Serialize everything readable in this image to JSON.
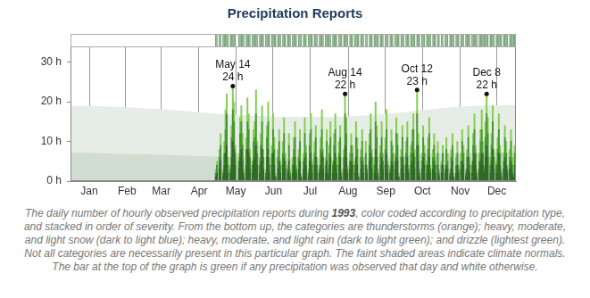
{
  "chart_data": {
    "type": "bar",
    "title": "Precipitation Reports",
    "stacked": true,
    "grid": true,
    "x": [
      119,
      120,
      121,
      122,
      123,
      124,
      125,
      126,
      127,
      128,
      129,
      130,
      131,
      132,
      133,
      134,
      135,
      136,
      137,
      138,
      139,
      140,
      141,
      142,
      143,
      144,
      145,
      146,
      147,
      148,
      149,
      150,
      151,
      152,
      153,
      154,
      155,
      156,
      157,
      158,
      159,
      160,
      161,
      162,
      163,
      164,
      165,
      166,
      167,
      168,
      169,
      170,
      171,
      172,
      173,
      174,
      175,
      176,
      177,
      178,
      179,
      180,
      181,
      182,
      183,
      184,
      185,
      186,
      187,
      188,
      189,
      190,
      191,
      192,
      193,
      194,
      195,
      196,
      197,
      198,
      199,
      200,
      201,
      202,
      203,
      204,
      205,
      206,
      207,
      208,
      209,
      210,
      211,
      212,
      213,
      214,
      215,
      216,
      217,
      218,
      219,
      220,
      221,
      222,
      223,
      224,
      225,
      226,
      227,
      228,
      229,
      230,
      231,
      232,
      233,
      234,
      235,
      236,
      237,
      238,
      239,
      240,
      241,
      242,
      243,
      244,
      245,
      246,
      247,
      248,
      249,
      250,
      251,
      252,
      253,
      254,
      255,
      256,
      257,
      258,
      259,
      260,
      261,
      262,
      263,
      264,
      265,
      266,
      267,
      268,
      269,
      270,
      271,
      272,
      273,
      274,
      275,
      276,
      277,
      278,
      279,
      280,
      281,
      282,
      283,
      284,
      285,
      286,
      287,
      288,
      289,
      290,
      291,
      292,
      293,
      294,
      295,
      296,
      297,
      298,
      299,
      300,
      301,
      302,
      303,
      304,
      305,
      306,
      307,
      308,
      309,
      310,
      311,
      312,
      313,
      314,
      315,
      316,
      317,
      318,
      319,
      320,
      321,
      322,
      323,
      324,
      325,
      326,
      327,
      328,
      329,
      330,
      331,
      332,
      333,
      334,
      335,
      336,
      337,
      338,
      339,
      340,
      341,
      342,
      343,
      344,
      345,
      346,
      347,
      348,
      349,
      350,
      351,
      352,
      353,
      354,
      355,
      356,
      357,
      358,
      359,
      360,
      361,
      362,
      363,
      364
    ],
    "xlim": [
      0,
      365
    ],
    "xticks": [
      {
        "value": 0,
        "label": "Jan"
      },
      {
        "value": 31,
        "label": "Feb"
      },
      {
        "value": 59,
        "label": "Mar"
      },
      {
        "value": 90,
        "label": "Apr"
      },
      {
        "value": 120,
        "label": "May"
      },
      {
        "value": 151,
        "label": "Jun"
      },
      {
        "value": 181,
        "label": "Jul"
      },
      {
        "value": 212,
        "label": "Aug"
      },
      {
        "value": 243,
        "label": "Sep"
      },
      {
        "value": 273,
        "label": "Oct"
      },
      {
        "value": 304,
        "label": "Nov"
      },
      {
        "value": 334,
        "label": "Dec"
      }
    ],
    "ylim": [
      0,
      34
    ],
    "yticks": [
      {
        "value": 0,
        "label": "0 h"
      },
      {
        "value": 10,
        "label": "10 h"
      },
      {
        "value": 20,
        "label": "20 h"
      },
      {
        "value": 30,
        "label": "30 h"
      }
    ],
    "series": [
      {
        "color": "#2f6a26",
        "values": [
          1,
          2,
          0,
          3,
          5,
          0,
          1,
          4,
          7,
          9,
          2,
          0,
          2,
          6,
          10,
          8,
          4,
          0,
          0,
          3,
          6,
          8,
          5,
          1,
          0,
          4,
          8,
          7,
          3,
          0,
          2,
          5,
          6,
          9,
          4,
          0,
          2,
          5,
          8,
          3,
          0,
          1,
          6,
          8,
          2,
          0,
          4,
          7,
          4,
          1,
          0,
          3,
          5,
          2,
          0,
          4,
          6,
          3,
          0,
          2,
          5,
          1,
          0,
          2,
          4,
          6,
          2,
          0,
          3,
          5,
          1,
          0,
          3,
          6,
          4,
          0,
          1,
          5,
          7,
          2,
          0,
          4,
          6,
          2,
          0,
          2,
          4,
          7,
          3,
          0,
          2,
          5,
          1,
          4,
          6,
          0,
          2,
          5,
          7,
          2,
          0,
          4,
          6,
          1,
          0,
          3,
          9,
          6,
          2,
          0,
          3,
          5,
          4,
          0,
          2,
          6,
          4,
          1,
          0,
          3,
          5,
          2,
          0,
          4,
          2,
          0,
          5,
          7,
          3,
          0,
          2,
          8,
          6,
          1,
          0,
          4,
          6,
          3,
          0,
          4,
          7,
          2,
          0,
          2,
          5,
          4,
          0,
          3,
          6,
          5,
          1,
          0,
          3,
          6,
          2,
          0,
          4,
          6,
          2,
          0,
          4,
          5,
          7,
          3,
          0,
          9,
          5,
          1,
          0,
          3,
          6,
          4,
          0,
          2,
          4,
          6,
          2,
          0,
          3,
          5,
          2,
          0,
          4,
          1,
          0,
          2,
          4,
          0,
          2,
          4,
          3,
          0,
          1,
          3,
          5,
          1,
          0,
          2,
          4,
          2,
          0,
          3,
          5,
          4,
          0,
          1,
          3,
          6,
          2,
          0,
          2,
          5,
          7,
          4,
          1,
          0,
          3,
          5,
          7,
          4,
          2,
          6,
          9,
          6,
          0,
          2,
          5,
          8,
          3,
          0,
          2,
          4,
          7,
          4,
          1,
          0,
          3,
          6,
          4,
          2,
          0,
          3,
          5,
          2,
          1,
          4
        ]
      },
      {
        "color": "#46962f",
        "values": [
          1,
          2,
          0,
          3,
          4,
          0,
          1,
          3,
          6,
          8,
          2,
          0,
          1,
          5,
          8,
          7,
          3,
          0,
          0,
          2,
          6,
          7,
          4,
          1,
          0,
          4,
          7,
          6,
          3,
          0,
          2,
          5,
          5,
          8,
          3,
          0,
          2,
          4,
          7,
          3,
          0,
          1,
          5,
          7,
          2,
          0,
          3,
          6,
          4,
          0,
          0,
          3,
          5,
          2,
          0,
          3,
          6,
          2,
          0,
          1,
          4,
          1,
          0,
          2,
          4,
          5,
          1,
          0,
          3,
          5,
          0,
          0,
          2,
          6,
          3,
          0,
          1,
          4,
          6,
          2,
          0,
          3,
          5,
          2,
          0,
          1,
          4,
          6,
          3,
          0,
          2,
          5,
          1,
          3,
          5,
          0,
          2,
          4,
          6,
          2,
          0,
          3,
          5,
          1,
          0,
          3,
          8,
          6,
          1,
          0,
          2,
          4,
          3,
          0,
          2,
          5,
          4,
          0,
          0,
          3,
          5,
          2,
          0,
          3,
          1,
          0,
          4,
          6,
          3,
          0,
          2,
          7,
          5,
          1,
          0,
          3,
          5,
          2,
          0,
          4,
          6,
          2,
          0,
          1,
          5,
          3,
          0,
          2,
          6,
          4,
          0,
          0,
          3,
          5,
          2,
          0,
          3,
          5,
          1,
          0,
          3,
          5,
          6,
          3,
          0,
          8,
          4,
          1,
          0,
          2,
          5,
          3,
          0,
          2,
          4,
          6,
          1,
          0,
          3,
          4,
          2,
          0,
          3,
          1,
          0,
          2,
          3,
          0,
          1,
          4,
          2,
          0,
          1,
          3,
          4,
          0,
          0,
          2,
          3,
          1,
          0,
          2,
          5,
          3,
          0,
          1,
          3,
          5,
          2,
          0,
          2,
          4,
          6,
          3,
          1,
          0,
          2,
          5,
          6,
          3,
          1,
          5,
          8,
          6,
          0,
          2,
          4,
          7,
          3,
          0,
          2,
          4,
          6,
          3,
          1,
          0,
          2,
          5,
          3,
          1,
          0,
          3,
          5,
          2,
          0,
          3
        ]
      },
      {
        "color": "#84cf52",
        "values": [
          1,
          1,
          0,
          2,
          3,
          0,
          1,
          3,
          5,
          5,
          2,
          0,
          1,
          3,
          6,
          5,
          2,
          0,
          0,
          2,
          4,
          4,
          3,
          1,
          0,
          3,
          6,
          4,
          2,
          0,
          1,
          3,
          4,
          6,
          3,
          0,
          2,
          3,
          4,
          2,
          0,
          1,
          3,
          5,
          2,
          0,
          2,
          4,
          3,
          1,
          0,
          2,
          3,
          1,
          0,
          3,
          4,
          2,
          0,
          1,
          3,
          1,
          0,
          2,
          3,
          4,
          1,
          0,
          2,
          3,
          1,
          0,
          2,
          4,
          2,
          0,
          1,
          3,
          4,
          1,
          0,
          3,
          3,
          2,
          0,
          1,
          3,
          5,
          2,
          0,
          2,
          3,
          1,
          2,
          4,
          0,
          1,
          3,
          4,
          2,
          0,
          3,
          3,
          1,
          0,
          2,
          5,
          4,
          1,
          0,
          2,
          3,
          2,
          0,
          1,
          4,
          3,
          1,
          0,
          2,
          3,
          2,
          0,
          3,
          1,
          0,
          3,
          4,
          2,
          0,
          2,
          5,
          3,
          1,
          0,
          2,
          4,
          2,
          0,
          3,
          5,
          1,
          0,
          1,
          3,
          2,
          0,
          2,
          4,
          3,
          1,
          0,
          2,
          3,
          2,
          0,
          3,
          4,
          1,
          0,
          2,
          3,
          4,
          2,
          0,
          6,
          3,
          1,
          0,
          2,
          3,
          2,
          0,
          1,
          3,
          4,
          1,
          0,
          2,
          3,
          2,
          0,
          3,
          1,
          0,
          1,
          2,
          0,
          1,
          3,
          2,
          0,
          1,
          2,
          3,
          1,
          0,
          2,
          3,
          1,
          0,
          2,
          3,
          2,
          0,
          1,
          2,
          3,
          2,
          0,
          1,
          3,
          4,
          2,
          1,
          0,
          2,
          3,
          5,
          3,
          1,
          4,
          5,
          4,
          0,
          2,
          3,
          4,
          2,
          0,
          1,
          3,
          4,
          2,
          1,
          0,
          2,
          3,
          3,
          1,
          0,
          2,
          3,
          2,
          1,
          2
        ]
      }
    ],
    "normals": {
      "x": [
        0,
        31,
        59,
        90,
        120,
        151,
        181,
        212,
        243,
        273,
        304,
        334,
        365
      ],
      "series": [
        {
          "color": "#e6ece6",
          "values": [
            19,
            18.8,
            18.4,
            17.8,
            17,
            16.5,
            16.2,
            16.2,
            16.6,
            17.4,
            18.4,
            19,
            19.2
          ]
        },
        {
          "color": "#d0ddd0",
          "values": [
            7.2,
            7,
            6.8,
            6.5,
            6.2,
            6,
            5.8,
            5.8,
            6,
            6.4,
            6.9,
            7.2,
            7.3
          ]
        }
      ]
    },
    "annotations": [
      {
        "x": 133,
        "y": 24,
        "text": [
          "May 14",
          "24 h"
        ]
      },
      {
        "x": 225,
        "y": 22,
        "text": [
          "Aug 14",
          "22 h"
        ]
      },
      {
        "x": 284,
        "y": 23,
        "text": [
          "Oct 12",
          "23 h"
        ]
      },
      {
        "x": 341,
        "y": 22,
        "text": [
          "Dec 8",
          "22 h"
        ]
      }
    ],
    "caption": [
      "The daily number of hourly observed precipitation reports during ",
      "1993",
      ", color coded according to precipitation type, and stacked in order of severity. From the bottom up, the categories are thunderstorms (orange); heavy, moderate, and light snow (dark to light blue); heavy, moderate, and light rain (dark to light green); and drizzle (lightest green). Not all categories are necessarily present in this particular graph. The faint shaded areas indicate climate normals. The bar at the top of the graph is green if any precipitation was observed that day and white otherwise."
    ]
  }
}
